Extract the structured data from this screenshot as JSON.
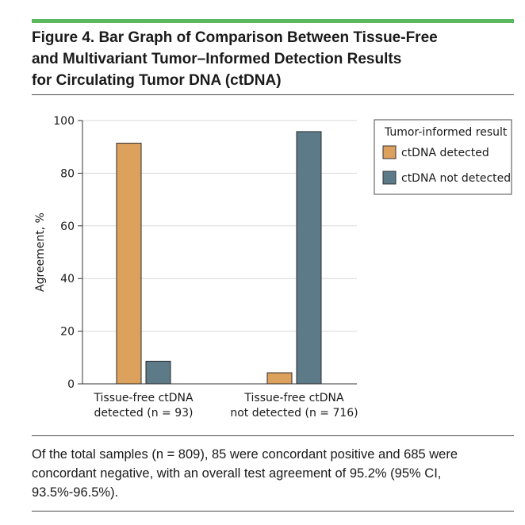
{
  "title_lines": [
    "Figure 4. Bar Graph of Comparison Between Tissue-Free",
    "and Multivariant Tumor–Informed Detection Results",
    "for Circulating Tumor DNA (ctDNA)"
  ],
  "caption": "Of the total samples (n = 809), 85 were concordant positive and 685 were concordant negative, with an overall test agreement of 95.2% (95% CI, 93.5%-96.5%).",
  "colors": {
    "accent_rule": "#5cb85c",
    "ctdna_detected": "#dda15e",
    "ctdna_not_detected": "#5d7a89",
    "grid": "#d9d9d9"
  },
  "chart_data": {
    "type": "bar",
    "title": "",
    "xlabel": "",
    "ylabel": "Agreement, %",
    "ylim": [
      0,
      100
    ],
    "yticks": [
      0,
      20,
      40,
      60,
      80,
      100
    ],
    "categories": [
      [
        "Tissue-free ctDNA",
        "detected (n = 93)"
      ],
      [
        "Tissue-free ctDNA",
        "not detected (n = 716)"
      ]
    ],
    "legend_title": "Tumor-informed result",
    "legend_position": "top-right",
    "grid": "horizontal",
    "series": [
      {
        "name": "ctDNA detected",
        "values": [
          91.4,
          4.2
        ],
        "color_key": "ctdna_detected"
      },
      {
        "name": "ctDNA not detected",
        "values": [
          8.6,
          95.8
        ],
        "color_key": "ctdna_not_detected"
      }
    ]
  }
}
